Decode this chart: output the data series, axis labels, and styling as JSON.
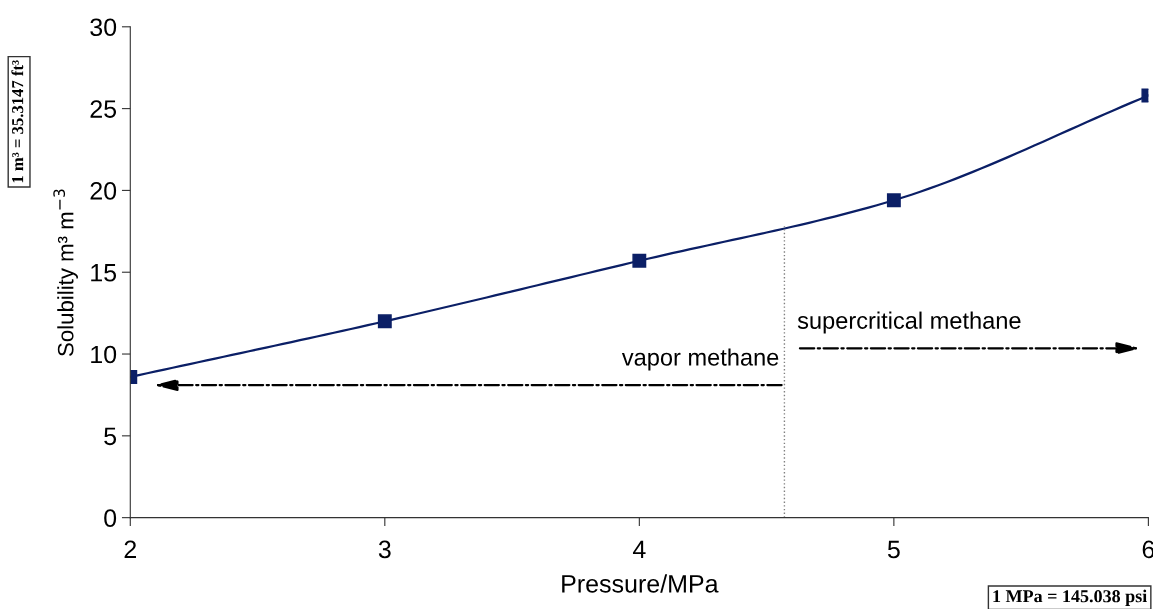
{
  "chart_data": {
    "type": "line",
    "xlabel": "Pressure/MPa",
    "ylabel": "Solubility m³ m$^{−3}$",
    "x": [
      2,
      3,
      4,
      5,
      6
    ],
    "series": [
      {
        "color": "#0b1f66",
        "values": [
          8.6,
          12.0,
          15.7,
          19.4,
          25.8
        ]
      }
    ],
    "marker": "square",
    "line_style": "solid",
    "xlim": [
      2,
      6
    ],
    "xticks": [
      2,
      3,
      4,
      5,
      6
    ],
    "ylim": [
      0,
      30
    ],
    "yticks": [
      0,
      5,
      10,
      15,
      20,
      25,
      30
    ],
    "grid": false,
    "ref_lines": [
      {
        "axis": "x",
        "value": 4.57,
        "color": "#808080",
        "line_style": "dotted"
      }
    ],
    "annotations": [
      "vapor methane",
      "supercritical methane",
      "1 m³ = 35.3147 ft³",
      "1 MPa = 145.038 psi"
    ]
  }
}
